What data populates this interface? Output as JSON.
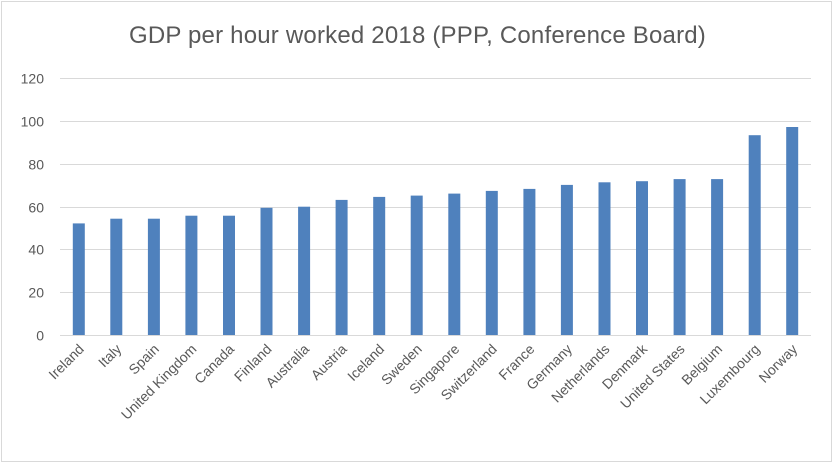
{
  "chart_data": {
    "type": "bar",
    "title": "GDP per hour worked 2018 (PPP, Conference Board)",
    "xlabel": "",
    "ylabel": "",
    "ylim": [
      0,
      120
    ],
    "yticks": [
      0,
      20,
      40,
      60,
      80,
      100,
      120
    ],
    "grid": true,
    "legend": null,
    "bar_color": "#4F81BD",
    "categories": [
      "Ireland",
      "Italy",
      "Spain",
      "United Kingdom",
      "Canada",
      "Finland",
      "Australia",
      "Austria",
      "Iceland",
      "Sweden",
      "Singapore",
      "Switzerland",
      "France",
      "Germany",
      "Netherlands",
      "Denmark",
      "United States",
      "Belgium",
      "Luxembourg",
      "Norway"
    ],
    "values": [
      52.1,
      54.3,
      54.3,
      55.7,
      55.7,
      59.4,
      59.9,
      63.1,
      64.5,
      65.1,
      66.0,
      67.3,
      68.2,
      70.1,
      71.3,
      71.8,
      72.8,
      72.8,
      93.3,
      97.1
    ]
  }
}
